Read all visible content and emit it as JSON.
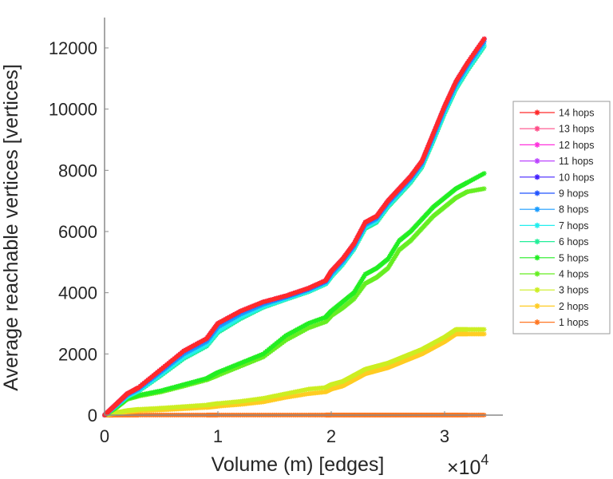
{
  "chart_data": {
    "type": "line",
    "title": "",
    "xlabel": "Volume (m) [edges]",
    "ylabel": "Average reachable vertices [vertices]",
    "x_exponent_label": "×10",
    "x_exponent": "4",
    "xlim": [
      0,
      3.5
    ],
    "ylim": [
      0,
      13000
    ],
    "xticks": [
      "0",
      "1",
      "2",
      "3"
    ],
    "xtick_values": [
      0,
      1,
      2,
      3
    ],
    "yticks": [
      "0",
      "2000",
      "4000",
      "6000",
      "8000",
      "10000",
      "12000"
    ],
    "ytick_values": [
      0,
      2000,
      4000,
      6000,
      8000,
      10000,
      12000
    ],
    "grid": false,
    "legend_position": "right",
    "x": [
      0,
      0.1,
      0.2,
      0.3,
      0.5,
      0.7,
      0.9,
      1.0,
      1.2,
      1.4,
      1.6,
      1.8,
      1.95,
      2.0,
      2.1,
      2.2,
      2.3,
      2.4,
      2.5,
      2.6,
      2.7,
      2.8,
      2.9,
      3.0,
      3.1,
      3.2,
      3.35
    ],
    "series": [
      {
        "name": "14 hops",
        "color": "#ff2a2a",
        "values": [
          0,
          350,
          700,
          900,
          1500,
          2100,
          2500,
          3000,
          3400,
          3700,
          3900,
          4150,
          4400,
          4700,
          5100,
          5600,
          6300,
          6500,
          7000,
          7400,
          7800,
          8300,
          9200,
          10100,
          10900,
          11500,
          12300
        ]
      },
      {
        "name": "13 hops",
        "color": "#ff4d88",
        "values": [
          0,
          350,
          700,
          900,
          1500,
          2100,
          2500,
          3000,
          3400,
          3700,
          3900,
          4150,
          4400,
          4700,
          5100,
          5600,
          6300,
          6500,
          7000,
          7400,
          7800,
          8300,
          9200,
          10100,
          10900,
          11500,
          12300
        ]
      },
      {
        "name": "12 hops",
        "color": "#ff33dd",
        "values": [
          0,
          350,
          700,
          900,
          1500,
          2100,
          2500,
          3000,
          3400,
          3700,
          3900,
          4150,
          4400,
          4700,
          5100,
          5600,
          6300,
          6500,
          7000,
          7400,
          7800,
          8300,
          9200,
          10100,
          10900,
          11500,
          12300
        ]
      },
      {
        "name": "11 hops",
        "color": "#bb44ff",
        "values": [
          0,
          350,
          700,
          900,
          1500,
          2100,
          2500,
          3000,
          3400,
          3700,
          3900,
          4150,
          4400,
          4700,
          5100,
          5600,
          6300,
          6500,
          7000,
          7400,
          7800,
          8300,
          9200,
          10100,
          10900,
          11500,
          12300
        ]
      },
      {
        "name": "10 hops",
        "color": "#4422ff",
        "values": [
          0,
          350,
          700,
          900,
          1500,
          2100,
          2500,
          3000,
          3400,
          3700,
          3900,
          4150,
          4400,
          4700,
          5100,
          5600,
          6300,
          6500,
          7000,
          7400,
          7800,
          8300,
          9200,
          10100,
          10900,
          11500,
          12300
        ]
      },
      {
        "name": "9 hops",
        "color": "#2255ff",
        "values": [
          0,
          340,
          690,
          890,
          1480,
          2080,
          2480,
          2980,
          3380,
          3680,
          3880,
          4130,
          4380,
          4680,
          5080,
          5580,
          6280,
          6480,
          6980,
          7380,
          7780,
          8280,
          9180,
          10080,
          10880,
          11480,
          12280
        ]
      },
      {
        "name": "8 hops",
        "color": "#1a9cff",
        "values": [
          0,
          320,
          660,
          850,
          1420,
          2000,
          2400,
          2880,
          3300,
          3620,
          3850,
          4100,
          4350,
          4620,
          5020,
          5520,
          6220,
          6420,
          6920,
          7320,
          7720,
          8220,
          9100,
          10000,
          10800,
          11400,
          12200
        ]
      },
      {
        "name": "7 hops",
        "color": "#22eeee",
        "values": [
          0,
          300,
          620,
          800,
          1340,
          1900,
          2300,
          2750,
          3200,
          3550,
          3800,
          4050,
          4300,
          4550,
          4950,
          5450,
          6150,
          6350,
          6850,
          7250,
          7650,
          8150,
          9000,
          9900,
          10700,
          11300,
          12100
        ]
      },
      {
        "name": "6 hops",
        "color": "#22ee99",
        "values": [
          0,
          290,
          600,
          780,
          1300,
          1850,
          2250,
          2700,
          3150,
          3520,
          3780,
          4030,
          4280,
          4520,
          4920,
          5420,
          6100,
          6300,
          6800,
          7200,
          7600,
          8100,
          8950,
          9850,
          10650,
          11250,
          12050
        ]
      },
      {
        "name": "5 hops",
        "color": "#22ee22",
        "values": [
          0,
          250,
          550,
          650,
          800,
          1000,
          1200,
          1400,
          1700,
          2000,
          2600,
          3000,
          3200,
          3400,
          3700,
          4000,
          4600,
          4800,
          5100,
          5700,
          6000,
          6400,
          6800,
          7100,
          7400,
          7600,
          7900
        ]
      },
      {
        "name": "4 hops",
        "color": "#66ee22",
        "values": [
          0,
          230,
          520,
          620,
          760,
          950,
          1150,
          1300,
          1600,
          1900,
          2450,
          2850,
          3050,
          3250,
          3500,
          3800,
          4300,
          4500,
          4800,
          5400,
          5700,
          6100,
          6500,
          6800,
          7100,
          7300,
          7400
        ]
      },
      {
        "name": "3 hops",
        "color": "#ccee22",
        "values": [
          0,
          80,
          150,
          190,
          230,
          280,
          330,
          380,
          450,
          550,
          700,
          850,
          900,
          1000,
          1100,
          1300,
          1500,
          1600,
          1700,
          1850,
          2000,
          2150,
          2350,
          2550,
          2800,
          2800,
          2800
        ]
      },
      {
        "name": "2 hops",
        "color": "#ffcc22",
        "values": [
          0,
          60,
          110,
          140,
          170,
          210,
          250,
          290,
          350,
          430,
          580,
          700,
          760,
          850,
          950,
          1150,
          1350,
          1450,
          1550,
          1700,
          1850,
          2000,
          2200,
          2400,
          2650,
          2650,
          2650
        ]
      },
      {
        "name": "1 hops",
        "color": "#ff7722",
        "values": [
          0,
          2,
          3,
          3,
          3,
          3,
          3,
          3,
          3,
          3,
          3,
          3,
          3,
          3,
          3,
          3,
          3,
          3,
          3,
          3,
          3,
          3,
          3,
          3,
          3,
          3,
          3
        ]
      }
    ]
  }
}
